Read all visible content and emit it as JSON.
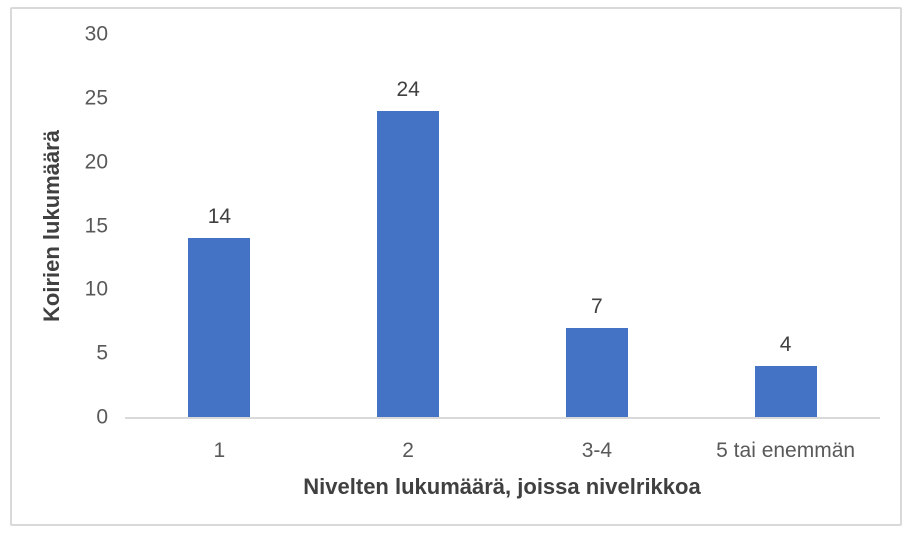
{
  "frame": {
    "border_color": "#d9d9d9",
    "background": "#ffffff"
  },
  "chart_data": {
    "type": "bar",
    "categories": [
      "1",
      "2",
      "3-4",
      "5 tai enemmän"
    ],
    "values": [
      14,
      24,
      7,
      4
    ],
    "title": "",
    "xlabel": "Nivelten lukumäärä, joissa nivelrikkoa",
    "ylabel": "Koirien lukumäärä",
    "ylim": [
      0,
      30
    ],
    "yticks": [
      0,
      5,
      10,
      15,
      20,
      25,
      30
    ],
    "data_labels": true,
    "grid": false,
    "legend": false,
    "bar_color": "#4472C4",
    "axis_line_color": "#d9d9d9",
    "tick_label_color": "#595959",
    "title_color": "#404040"
  }
}
